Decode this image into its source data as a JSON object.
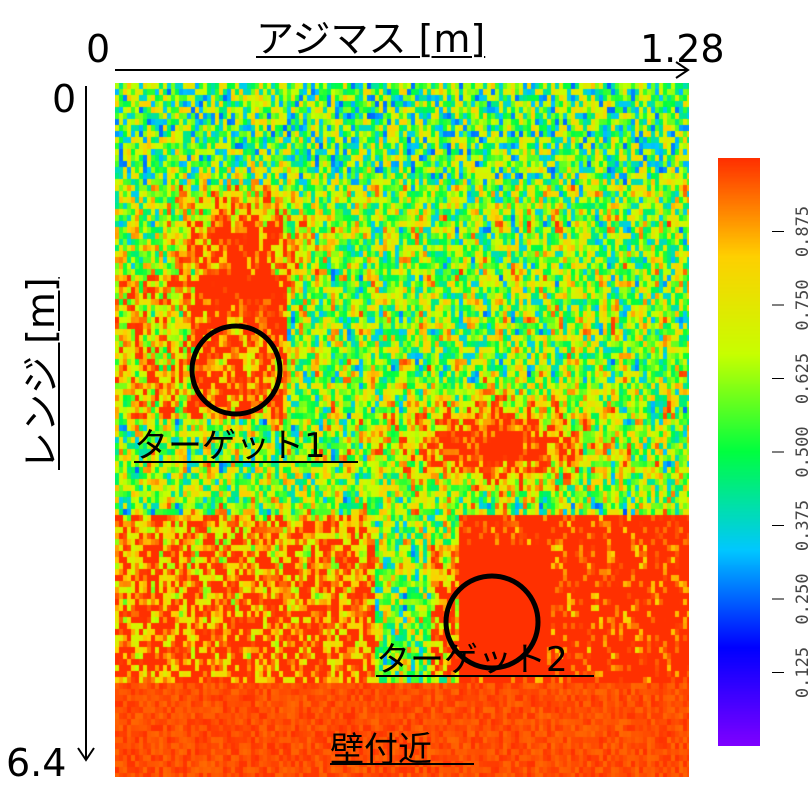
{
  "chart_data": {
    "type": "heatmap",
    "xlabel": "アジマス [m]",
    "ylabel": "レンジ [m]",
    "xlim": [
      0,
      1.28
    ],
    "ylim": [
      0,
      6.4
    ],
    "x_tick_labels": [
      "0",
      "1.28"
    ],
    "y_tick_labels": [
      "0",
      "6.4"
    ],
    "colorbar": {
      "range": [
        0,
        1
      ],
      "tick_values": [
        0.125,
        0.25,
        0.375,
        0.5,
        0.625,
        0.75,
        0.875
      ],
      "tick_labels": [
        "0.125",
        "0.250",
        "0.375",
        "0.500",
        "0.625",
        "0.750",
        "0.875"
      ],
      "colormap": [
        "#7f00ff",
        "#0000ff",
        "#00c8ff",
        "#00ff40",
        "#c8ff00",
        "#ffd000",
        "#ff3000"
      ]
    },
    "annotations": [
      {
        "text": "ターゲット1",
        "x": 0.27,
        "y": 2.25
      },
      {
        "text": "ターゲット2",
        "x": 0.83,
        "y": 4.3
      },
      {
        "text": "壁付近",
        "x": 0.6,
        "y": 5.9
      }
    ],
    "targets": [
      {
        "name": "ターゲット1",
        "x": 0.27,
        "y": 2.25,
        "r": 0.1
      },
      {
        "name": "ターゲット2",
        "x": 0.83,
        "y": 4.3,
        "r": 0.1
      }
    ]
  }
}
